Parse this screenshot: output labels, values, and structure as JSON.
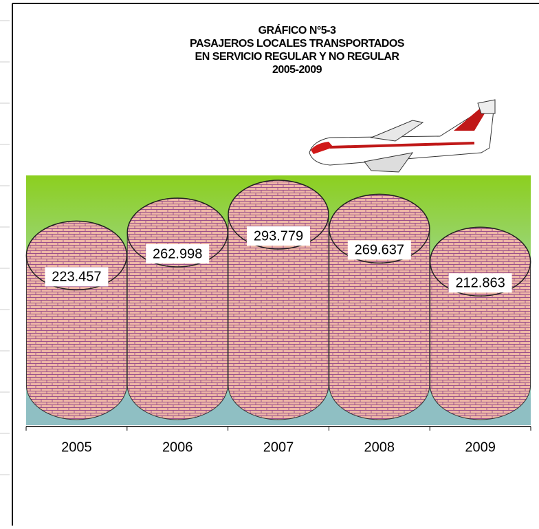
{
  "chart_data": {
    "type": "cylinder",
    "title": [
      "GRÁFICO N°5-3",
      "PASAJEROS LOCALES TRANSPORTADOS",
      "EN SERVICIO REGULAR Y NO REGULAR",
      "2005-2009"
    ],
    "categories": [
      "2005",
      "2006",
      "2007",
      "2008",
      "2009"
    ],
    "values": [
      223457,
      262998,
      293779,
      269637,
      212863
    ],
    "value_labels": [
      "223.457",
      "262.998",
      "293.779",
      "269.637",
      "212.863"
    ],
    "color": "#e9b3a3"
  }
}
